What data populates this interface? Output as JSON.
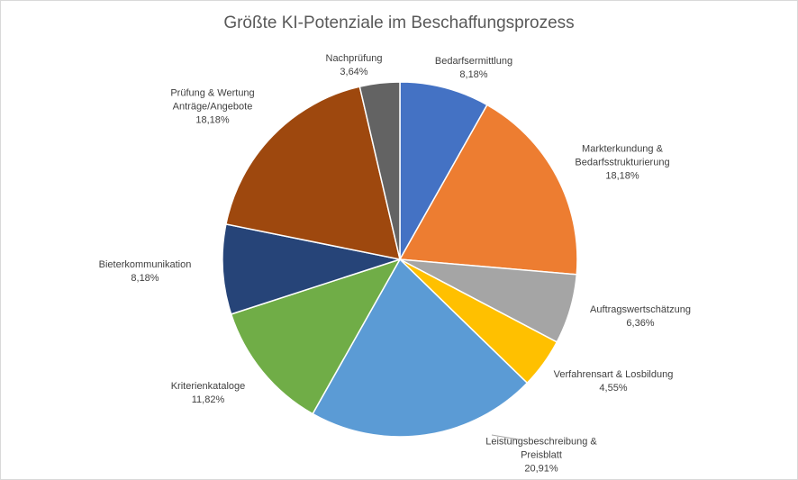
{
  "chart_data": {
    "type": "pie",
    "title": "Größte KI-Potenziale im Beschaffungsprozess",
    "categories": [
      "Bedarfsermittlung",
      "Markterkundung &\nBedarfsstrukturierung",
      "Auftragswertschätzung",
      "Verfahrensart & Losbildung",
      "Leistungsbeschreibung &\nPreisblatt",
      "Kriterienkataloge",
      "Bieterkommunikation",
      "Prüfung & Wertung\nAnträge/Angebote",
      "Nachprüfung"
    ],
    "values": [
      8.18,
      18.18,
      6.36,
      4.55,
      20.91,
      11.82,
      8.18,
      18.18,
      3.64
    ],
    "value_labels": [
      "8,18%",
      "18,18%",
      "6,36%",
      "4,55%",
      "20,91%",
      "11,82%",
      "8,18%",
      "18,18%",
      "3,64%"
    ],
    "colors": [
      "#4472c4",
      "#ed7d31",
      "#a5a5a5",
      "#ffc000",
      "#5b9bd5",
      "#70ad47",
      "#264478",
      "#9e480e",
      "#636363"
    ]
  }
}
